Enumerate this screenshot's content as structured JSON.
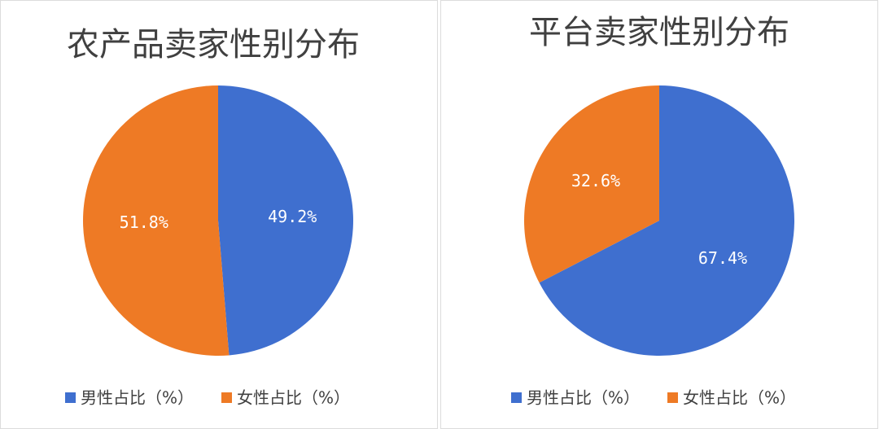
{
  "chart_data": [
    {
      "type": "pie",
      "title": "农产品卖家性别分布",
      "categories": [
        "男性占比（%）",
        "女性占比（%）"
      ],
      "values": [
        49.2,
        51.8
      ],
      "value_labels": [
        "49.2%",
        "51.8%"
      ],
      "colors": [
        "#3f6fcf",
        "#ee7a25"
      ]
    },
    {
      "type": "pie",
      "title": "平台卖家性别分布",
      "categories": [
        "男性占比（%）",
        "女性占比（%）"
      ],
      "values": [
        67.4,
        32.6
      ],
      "value_labels": [
        "67.4%",
        "32.6%"
      ],
      "colors": [
        "#3f6fcf",
        "#ee7a25"
      ]
    }
  ]
}
